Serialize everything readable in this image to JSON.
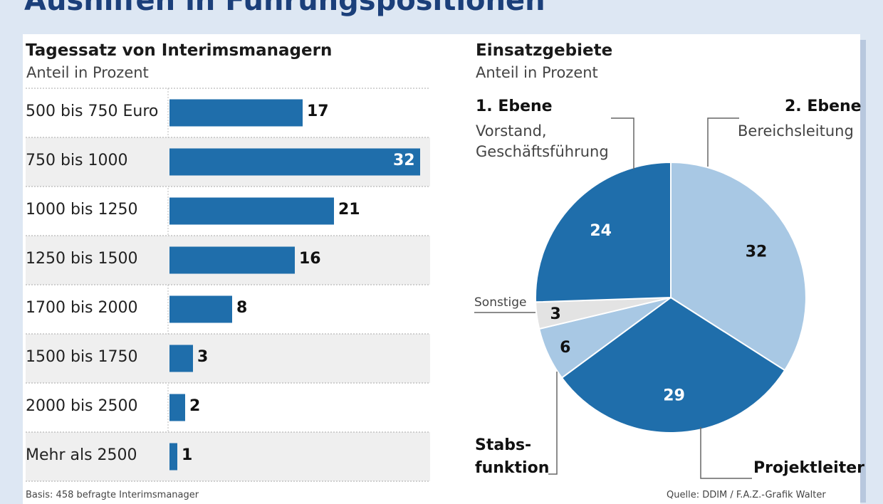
{
  "header": {
    "title": "Aushilfen in Führungspositionen"
  },
  "chart_data": [
    {
      "type": "bar",
      "orientation": "horizontal",
      "title": "Tagessatz von Interimsmanagern",
      "subtitle": "Anteil in Prozent",
      "categories": [
        "500 bis 750 Euro",
        "750 bis 1000",
        "1000 bis 1250",
        "1250 bis 1500",
        "1700 bis 2000",
        "1500 bis 1750",
        "2000 bis 2500",
        "Mehr als 2500"
      ],
      "values": [
        17,
        32,
        21,
        16,
        8,
        3,
        2,
        1
      ],
      "labels": [
        "17",
        "32",
        "21",
        "16",
        "8",
        "3",
        "2",
        "1"
      ],
      "xlim": [
        0,
        32
      ],
      "color": "#1f6eab",
      "stripe_color": "#efefef"
    },
    {
      "type": "pie",
      "title": "Einsatzgebiete",
      "subtitle": "Anteil in Prozent",
      "slices": [
        {
          "value": 32,
          "label": "32",
          "color": "#a8c8e4"
        },
        {
          "value": 29,
          "label": "29",
          "color": "#1f6eab"
        },
        {
          "value": 6,
          "label": "6",
          "color": "#a8c8e4"
        },
        {
          "value": 3,
          "label": "3",
          "color": "#e3e3e3"
        },
        {
          "value": 24,
          "label": "24",
          "color": "#1f6eab"
        }
      ]
    }
  ],
  "pie_categories": {
    "ebene1": {
      "title": "1. Ebene",
      "line1": "Vorstand,",
      "line2": "Geschäftsführung"
    },
    "ebene2": {
      "title": "2. Ebene",
      "line1": "Bereichsleitung"
    },
    "sonstige": "Sonstige",
    "stabs": {
      "line1": "Stabs-",
      "line2": "funktion"
    },
    "projekt": "Projektleiter"
  },
  "footer": {
    "basis": "Basis: 458 befragte Interimsmanager",
    "quelle": "Quelle: DDIM / F.A.Z.-Grafik Walter"
  }
}
